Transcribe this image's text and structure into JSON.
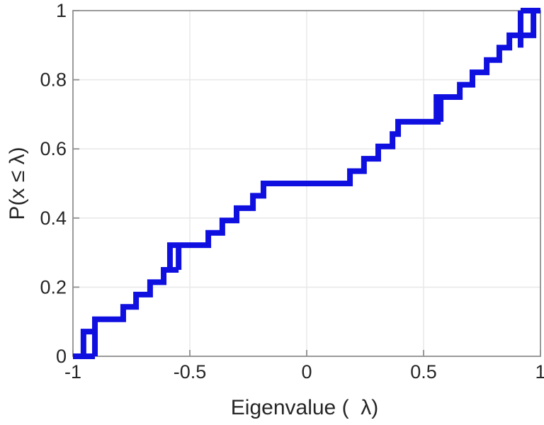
{
  "figure": {
    "background": "#ffffff",
    "axes_color": "#8f8f8f",
    "grid_color": "#e9e9e9",
    "label_color": "#262626"
  },
  "chart_data": {
    "type": "step",
    "subtype": "empirical-cdf",
    "title": "",
    "xlabel": "Eigenvalue (  λ)",
    "ylabel": "P(x ≤ λ)",
    "xlim": [
      -1,
      1
    ],
    "ylim": [
      0,
      1
    ],
    "grid": true,
    "legend": "none",
    "line_color": "#0f0fe0",
    "line_width": 8,
    "n_samples": 28,
    "step_height": 0.0357,
    "xticks": [
      {
        "value": -1,
        "label": "-1"
      },
      {
        "value": -0.5,
        "label": "-0.5"
      },
      {
        "value": 0,
        "label": "0"
      },
      {
        "value": 0.5,
        "label": "0.5"
      },
      {
        "value": 1,
        "label": "1"
      }
    ],
    "yticks": [
      {
        "value": 0,
        "label": "0"
      },
      {
        "value": 0.2,
        "label": "0.2"
      },
      {
        "value": 0.4,
        "label": "0.4"
      },
      {
        "value": 0.6,
        "label": "0.6"
      },
      {
        "value": 0.8,
        "label": "0.8"
      },
      {
        "value": 1,
        "label": "1"
      }
    ],
    "steps": [
      {
        "x": -1.0,
        "f": 0.0
      },
      {
        "x": -0.955,
        "f": 0.0714
      },
      {
        "x": -0.906,
        "f": 0.1071
      },
      {
        "x": -0.785,
        "f": 0.1429
      },
      {
        "x": -0.73,
        "f": 0.1786
      },
      {
        "x": -0.67,
        "f": 0.2143
      },
      {
        "x": -0.612,
        "f": 0.25
      },
      {
        "x": -0.585,
        "f": 0.3214
      },
      {
        "x": -0.421,
        "f": 0.3571
      },
      {
        "x": -0.361,
        "f": 0.3929
      },
      {
        "x": -0.3,
        "f": 0.4286
      },
      {
        "x": -0.23,
        "f": 0.4643
      },
      {
        "x": -0.185,
        "f": 0.5
      },
      {
        "x": 0.185,
        "f": 0.5357
      },
      {
        "x": 0.245,
        "f": 0.5714
      },
      {
        "x": 0.306,
        "f": 0.6071
      },
      {
        "x": 0.367,
        "f": 0.6429
      },
      {
        "x": 0.391,
        "f": 0.6786
      },
      {
        "x": 0.555,
        "f": 0.75
      },
      {
        "x": 0.655,
        "f": 0.7857
      },
      {
        "x": 0.709,
        "f": 0.8214
      },
      {
        "x": 0.77,
        "f": 0.8571
      },
      {
        "x": 0.824,
        "f": 0.8929
      },
      {
        "x": 0.867,
        "f": 0.9286
      },
      {
        "x": 0.97,
        "f": 1.0
      }
    ],
    "secondary_jump_verticals": [
      {
        "x": -0.906,
        "f0": 0.0,
        "f1": 0.1071
      },
      {
        "x": -0.548,
        "f0": 0.25,
        "f1": 0.3214
      },
      {
        "x": 0.573,
        "f0": 0.6786,
        "f1": 0.75
      },
      {
        "x": 0.915,
        "f0": 0.8929,
        "f1": 1.0
      }
    ],
    "secondary_level_extensions": [
      {
        "f": 0.0,
        "x0": -1.0,
        "x1": -0.906
      },
      {
        "f": 0.25,
        "x0": -0.612,
        "x1": -0.548
      },
      {
        "f": 0.6786,
        "x0": 0.391,
        "x1": 0.573
      },
      {
        "f": 0.9286,
        "x0": 0.867,
        "x1": 0.97
      },
      {
        "f": 1.0,
        "x0": 0.915,
        "x1": 1.0
      }
    ]
  }
}
